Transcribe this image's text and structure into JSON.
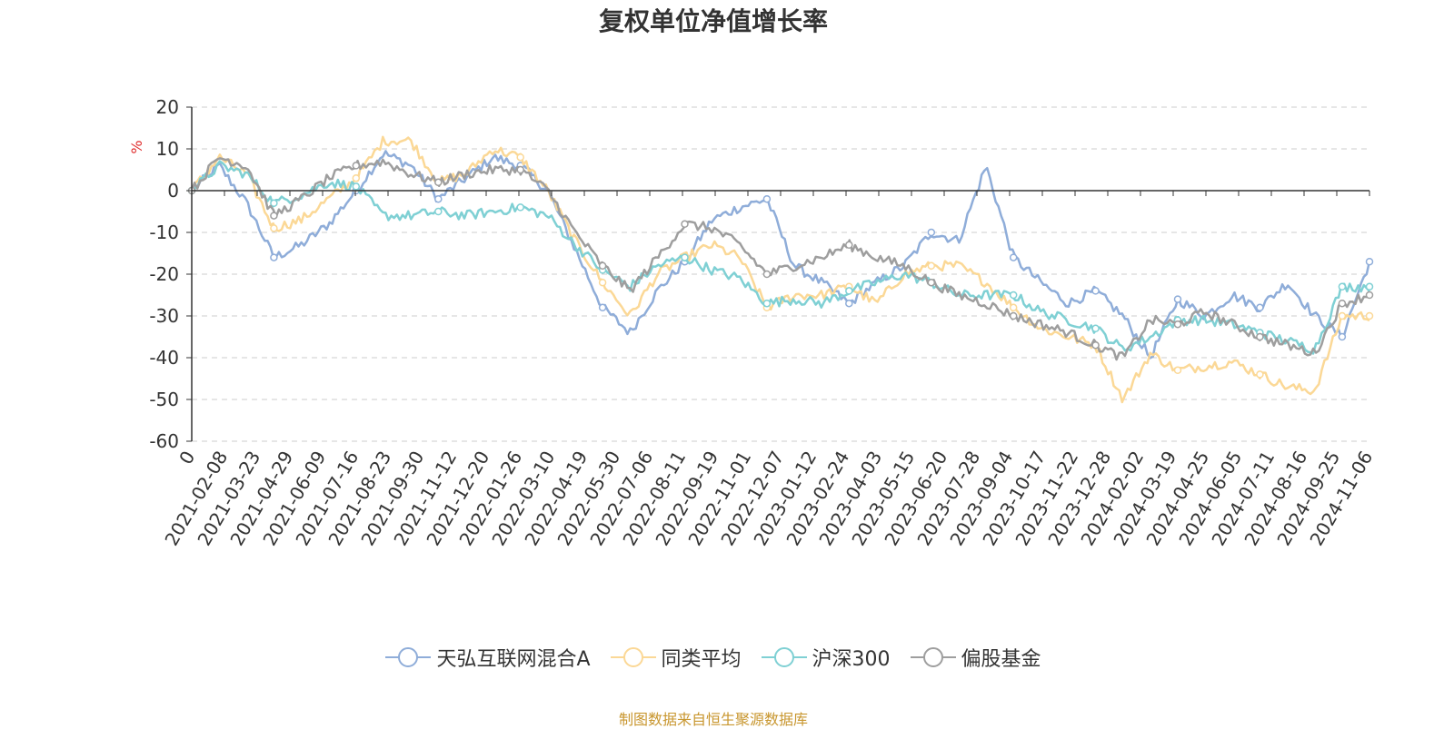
{
  "chart_data": {
    "type": "line",
    "title": "复权单位净值增长率",
    "ylabel": "%",
    "xlabel": "",
    "ylim": [
      -60,
      20
    ],
    "yticks": [
      20,
      10,
      0,
      -10,
      -20,
      -30,
      -40,
      -50,
      -60
    ],
    "grid": true,
    "legend_position": "bottom",
    "x_start": "2021-01-04",
    "x_end": "2024-11-13",
    "tick_labels": [
      "0",
      "2021-02-08",
      "2021-03-23",
      "2021-04-29",
      "2021-06-09",
      "2021-07-16",
      "2021-08-23",
      "2021-09-30",
      "2021-11-12",
      "2021-12-20",
      "2022-01-26",
      "2022-03-10",
      "2022-04-19",
      "2022-05-30",
      "2022-07-06",
      "2022-08-11",
      "2022-09-19",
      "2022-11-01",
      "2022-12-07",
      "2023-01-12",
      "2023-02-24",
      "2023-04-03",
      "2023-05-15",
      "2023-06-20",
      "2023-07-28",
      "2023-09-04",
      "2023-10-17",
      "2023-11-22",
      "2023-12-28",
      "2024-02-02",
      "2024-03-19",
      "2024-04-25",
      "2024-06-05",
      "2024-07-11",
      "2024-08-16",
      "2024-09-25",
      "2024-11-06"
    ],
    "series": [
      {
        "name": "天弘互联网混合A",
        "color": "#8fadd9",
        "values": [
          0,
          6,
          -3,
          -16,
          -13,
          -8,
          0,
          9,
          6,
          -2,
          3,
          8,
          6,
          0,
          -14,
          -28,
          -34,
          -24,
          -17,
          -7,
          -4,
          -2,
          -18,
          -22,
          -27,
          -22,
          -18,
          -10,
          -12,
          6,
          -16,
          -22,
          -27,
          -24,
          -30,
          -40,
          -26,
          -30,
          -25,
          -28,
          -22,
          -30,
          -35,
          -17
        ]
      },
      {
        "name": "同类平均",
        "color": "#fbd896",
        "values": [
          0,
          8,
          4,
          -9,
          -7,
          -2,
          3,
          12,
          12,
          2,
          4,
          10,
          8,
          0,
          -12,
          -22,
          -30,
          -20,
          -16,
          -13,
          -16,
          -28,
          -25,
          -25,
          -23,
          -27,
          -20,
          -18,
          -18,
          -22,
          -28,
          -33,
          -35,
          -37,
          -50,
          -39,
          -43,
          -42,
          -41,
          -44,
          -47,
          -48,
          -30,
          -30
        ]
      },
      {
        "name": "沪深300",
        "color": "#7fd0d4",
        "values": [
          0,
          6,
          4,
          -3,
          -1,
          2,
          1,
          -6,
          -6,
          -5,
          -6,
          -5,
          -4,
          -6,
          -13,
          -19,
          -23,
          -18,
          -16,
          -19,
          -21,
          -27,
          -26,
          -27,
          -24,
          -22,
          -20,
          -22,
          -25,
          -25,
          -25,
          -29,
          -31,
          -33,
          -38,
          -35,
          -31,
          -31,
          -32,
          -34,
          -36,
          -38,
          -23,
          -23
        ]
      },
      {
        "name": "偏股基金",
        "color": "#9e9e9e",
        "values": [
          0,
          8,
          6,
          -6,
          -2,
          3,
          6,
          7,
          4,
          2,
          4,
          5,
          5,
          0,
          -10,
          -18,
          -24,
          -16,
          -8,
          -9,
          -13,
          -20,
          -18,
          -16,
          -13,
          -16,
          -18,
          -22,
          -25,
          -27,
          -30,
          -32,
          -34,
          -37,
          -40,
          -31,
          -32,
          -29,
          -32,
          -35,
          -37,
          -39,
          -27,
          -25
        ]
      }
    ]
  },
  "legend": {
    "items": [
      "天弘互联网混合A",
      "同类平均",
      "沪深300",
      "偏股基金"
    ]
  },
  "source": "制图数据来自恒生聚源数据库"
}
